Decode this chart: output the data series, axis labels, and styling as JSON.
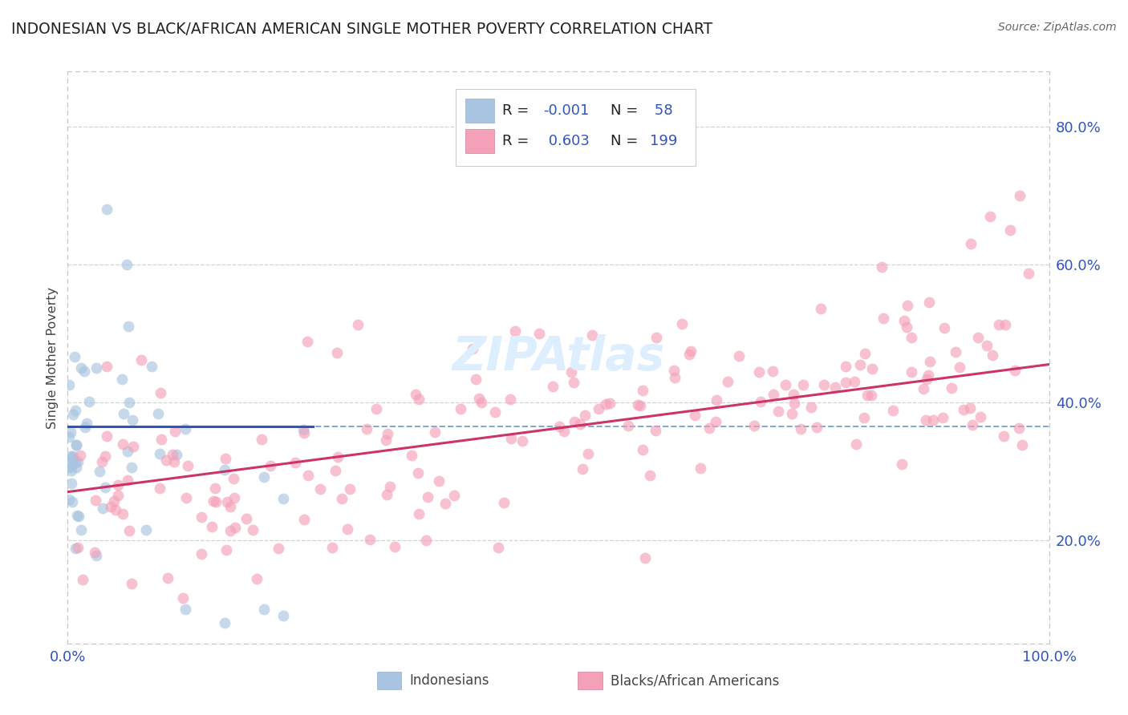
{
  "title": "INDONESIAN VS BLACK/AFRICAN AMERICAN SINGLE MOTHER POVERTY CORRELATION CHART",
  "source": "Source: ZipAtlas.com",
  "ylabel": "Single Mother Poverty",
  "legend_R1": "-0.001",
  "legend_N1": "58",
  "legend_R2": "0.603",
  "legend_N2": "199",
  "bottom_label1": "Indonesians",
  "bottom_label2": "Blacks/African Americans",
  "ytick_vals": [
    0.2,
    0.4,
    0.6,
    0.8
  ],
  "ytick_labels": [
    "20.0%",
    "40.0%",
    "60.0%",
    "80.0%"
  ],
  "xmin": 0.0,
  "xmax": 1.0,
  "ymin": 0.05,
  "ymax": 0.88,
  "bg_color": "#ffffff",
  "grid_color": "#c8c8c8",
  "dot_color_indonesian": "#a8c4e0",
  "dot_color_black": "#f4a0b8",
  "line_color_indonesian": "#3355bb",
  "line_color_black": "#cc3366",
  "mean_line_color": "#6699cc",
  "title_color": "#222222",
  "source_color": "#666666",
  "axis_tick_color": "#3355bb",
  "watermark_text": "ZIPAtlas",
  "watermark_color": "#ddeeff",
  "legend_patch_blue": "#a8c4e0",
  "legend_patch_pink": "#f4a0b8",
  "legend_text_color": "#3355bb"
}
